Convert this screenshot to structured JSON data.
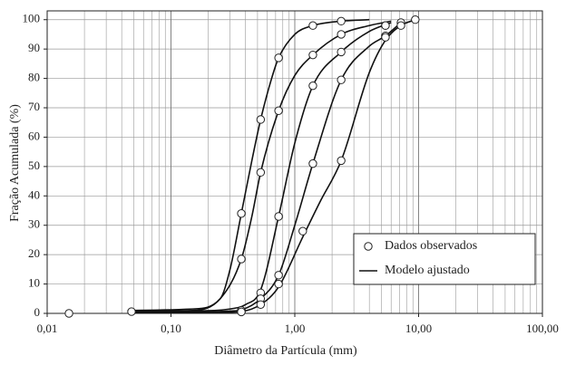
{
  "chart_data": {
    "type": "line",
    "x_label": "Diâmetro da Partícula (mm)",
    "y_label": "Fração Acumulada (%)",
    "log_x": true,
    "grid": true,
    "minor_grid": true,
    "legend": "lower right",
    "xlim": [
      0.01,
      100
    ],
    "ylim": [
      0,
      103
    ],
    "xticks": [
      {
        "value": 0.01,
        "label": "0,01"
      },
      {
        "value": 0.1,
        "label": "0,10"
      },
      {
        "value": 1,
        "label": "1,00"
      },
      {
        "value": 10,
        "label": "10,00"
      },
      {
        "value": 100,
        "label": "100,00"
      }
    ],
    "yticks": [
      0,
      10,
      20,
      30,
      40,
      50,
      60,
      70,
      80,
      90,
      100
    ],
    "series": [
      {
        "name": "Dados observados",
        "color": "#222222",
        "marker": "circle",
        "curves": [
          {
            "x": [
              0.015,
              0.37,
              0.53,
              0.74,
              1.4,
              2.37
            ],
            "values": [
              0,
              34,
              66,
              87,
              98,
              99.5
            ]
          },
          {
            "x": [
              0.048,
              0.37,
              0.53,
              0.74,
              1.4,
              2.37,
              5.4
            ],
            "values": [
              0.6,
              18.5,
              48,
              69,
              88,
              95,
              98
            ]
          },
          {
            "x": [
              0.53,
              0.74,
              1.4,
              2.37,
              5.4
            ],
            "values": [
              7,
              33,
              77.5,
              89,
              98
            ]
          },
          {
            "x": [
              0.37,
              0.53,
              0.74,
              1.4,
              2.37,
              5.4,
              7.2
            ],
            "values": [
              1,
              5,
              13,
              51,
              79.5,
              94.5,
              99
            ]
          },
          {
            "x": [
              0.37,
              0.53,
              0.74,
              1.16,
              2.37,
              5.4,
              7.2,
              9.4
            ],
            "values": [
              0.5,
              3,
              10,
              28,
              52,
              94,
              98,
              100
            ]
          }
        ]
      },
      {
        "name": "Modelo ajustado",
        "color": "#111111",
        "curves": [
          {
            "x": [
              0.045,
              0.15,
              0.25,
              0.3,
              0.37,
              0.45,
              0.53,
              0.65,
              0.74,
              1.0,
              1.4,
              2.37,
              4
            ],
            "values": [
              1,
              1.5,
              5,
              15,
              34,
              52,
              66,
              80,
              87,
              95,
              98,
              99.5,
              100
            ]
          },
          {
            "x": [
              0.045,
              0.15,
              0.25,
              0.37,
              0.45,
              0.53,
              0.74,
              1.0,
              1.4,
              2.37,
              4,
              6
            ],
            "values": [
              0.8,
              1,
              5,
              18.5,
              33,
              48,
              69,
              81,
              88,
              95,
              98,
              99.5
            ]
          },
          {
            "x": [
              0.045,
              0.15,
              0.3,
              0.4,
              0.53,
              0.74,
              1.0,
              1.4,
              2.37,
              4,
              6
            ],
            "values": [
              0.5,
              0.8,
              1.5,
              3,
              8,
              33,
              58,
              77.5,
              89,
              96,
              99
            ]
          },
          {
            "x": [
              0.045,
              0.15,
              0.3,
              0.37,
              0.53,
              0.74,
              1.0,
              1.4,
              2.37,
              4,
              5.4,
              7.2
            ],
            "values": [
              0.3,
              0.5,
              0.8,
              1.2,
              5,
              13,
              30,
              51,
              79.5,
              91,
              94.5,
              99
            ]
          },
          {
            "x": [
              0.045,
              0.15,
              0.3,
              0.37,
              0.53,
              0.74,
              1.16,
              1.6,
              2.37,
              4,
              5.4,
              7.2,
              9.4
            ],
            "values": [
              0.2,
              0.3,
              0.4,
              0.6,
              3,
              9,
              26,
              38,
              52,
              82,
              93,
              98,
              100
            ]
          }
        ]
      }
    ]
  }
}
